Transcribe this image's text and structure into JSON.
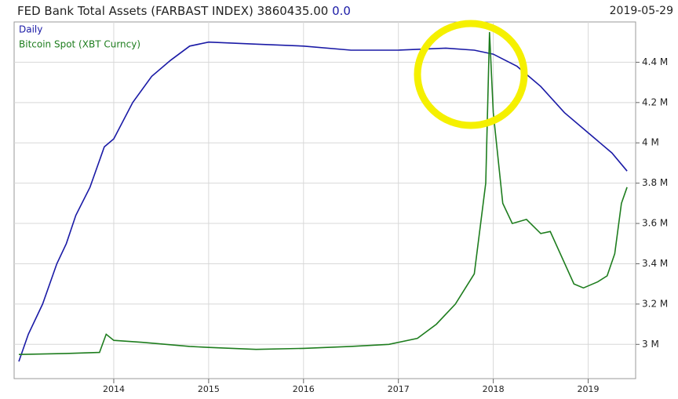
{
  "chart_data": {
    "type": "line",
    "title": "FED Bank Total Assets (FARBAST INDEX)",
    "last_value": "3860435.00",
    "change": "0.0",
    "date": "2019-05-29",
    "grid": true,
    "legend": "top-left",
    "xlim": [
      2012.95,
      2019.5
    ],
    "xticks": [
      2014,
      2015,
      2016,
      2017,
      2018,
      2019
    ],
    "ylim": [
      2830000,
      4600000
    ],
    "yticks": [
      {
        "value": 3000000,
        "label": "3 M"
      },
      {
        "value": 3200000,
        "label": "3.2 M"
      },
      {
        "value": 3400000,
        "label": "3.4 M"
      },
      {
        "value": 3600000,
        "label": "3.6 M"
      },
      {
        "value": 3800000,
        "label": "3.8 M"
      },
      {
        "value": 4000000,
        "label": "4 M"
      },
      {
        "value": 4200000,
        "label": "4.2 M"
      },
      {
        "value": 4400000,
        "label": "4.4 M"
      }
    ],
    "series": [
      {
        "name": "Daily",
        "color": "#1a1aa6",
        "x": [
          2013.0,
          2013.1,
          2013.25,
          2013.4,
          2013.5,
          2013.6,
          2013.75,
          2013.9,
          2014.0,
          2014.2,
          2014.4,
          2014.6,
          2014.8,
          2015.0,
          2015.5,
          2016.0,
          2016.5,
          2017.0,
          2017.5,
          2017.8,
          2018.0,
          2018.25,
          2018.5,
          2018.75,
          2019.0,
          2019.25,
          2019.41
        ],
        "values": [
          2915000,
          3050000,
          3200000,
          3400000,
          3500000,
          3640000,
          3780000,
          3980000,
          4020000,
          4200000,
          4330000,
          4410000,
          4480000,
          4500000,
          4490000,
          4480000,
          4460000,
          4460000,
          4470000,
          4460000,
          4440000,
          4380000,
          4280000,
          4150000,
          4050000,
          3950000,
          3860000
        ]
      },
      {
        "name": "Bitcoin Spot (XBT Curncy)",
        "color": "#1e7d1e",
        "x": [
          2013.0,
          2013.5,
          2013.85,
          2013.92,
          2014.0,
          2014.3,
          2014.8,
          2015.0,
          2015.5,
          2016.0,
          2016.5,
          2016.9,
          2017.2,
          2017.4,
          2017.6,
          2017.8,
          2017.92,
          2017.96,
          2018.0,
          2018.1,
          2018.2,
          2018.35,
          2018.5,
          2018.6,
          2018.85,
          2018.95,
          2019.1,
          2019.2,
          2019.28,
          2019.35,
          2019.41
        ],
        "values": [
          2950000,
          2955000,
          2960000,
          3050000,
          3020000,
          3010000,
          2990000,
          2985000,
          2975000,
          2980000,
          2990000,
          3000000,
          3030000,
          3100000,
          3200000,
          3350000,
          3800000,
          4550000,
          4150000,
          3700000,
          3600000,
          3620000,
          3550000,
          3560000,
          3300000,
          3280000,
          3310000,
          3340000,
          3450000,
          3700000,
          3780000
        ]
      }
    ]
  }
}
